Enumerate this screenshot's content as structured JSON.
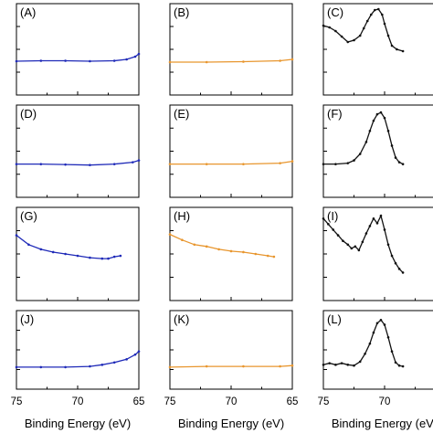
{
  "figure": {
    "bg": "#ffffff"
  },
  "colors": {
    "blue": "#1f2ab8",
    "orange": "#e8962e",
    "black": "#111111"
  },
  "chart_data": [
    {
      "type": "line",
      "label": "(A)",
      "color": "#1f2ab8",
      "xlim": [
        75,
        65
      ],
      "yrange": [
        0,
        1
      ],
      "x": [
        75,
        73,
        71,
        69,
        67,
        66,
        65.3,
        65
      ],
      "y": [
        0.37,
        0.375,
        0.375,
        0.37,
        0.375,
        0.39,
        0.42,
        0.45
      ]
    },
    {
      "type": "line",
      "label": "(B)",
      "color": "#e8962e",
      "xlim": [
        75,
        65
      ],
      "yrange": [
        0,
        1
      ],
      "x": [
        75,
        72,
        69,
        66,
        65
      ],
      "y": [
        0.36,
        0.36,
        0.365,
        0.375,
        0.39
      ]
    },
    {
      "type": "line",
      "label": "(C)",
      "color": "#111111",
      "xlim": [
        75,
        65
      ],
      "yrange": [
        0,
        1
      ],
      "partial": true,
      "x": [
        75,
        74.5,
        74,
        73.5,
        73,
        72.5,
        72,
        71.7,
        71.4,
        71.1,
        70.8,
        70.5,
        70.2,
        70,
        69.7,
        69.4,
        69,
        68.5
      ],
      "y": [
        0.76,
        0.74,
        0.7,
        0.64,
        0.58,
        0.6,
        0.65,
        0.73,
        0.81,
        0.88,
        0.93,
        0.94,
        0.88,
        0.78,
        0.65,
        0.54,
        0.5,
        0.48
      ]
    },
    {
      "type": "line",
      "label": "(D)",
      "color": "#1f2ab8",
      "xlim": [
        75,
        65
      ],
      "yrange": [
        0,
        1
      ],
      "x": [
        75,
        73,
        71,
        69,
        67,
        65.5,
        65
      ],
      "y": [
        0.36,
        0.36,
        0.355,
        0.35,
        0.36,
        0.38,
        0.4
      ]
    },
    {
      "type": "line",
      "label": "(E)",
      "color": "#e8962e",
      "xlim": [
        75,
        65
      ],
      "yrange": [
        0,
        1
      ],
      "x": [
        75,
        72,
        69,
        66,
        65
      ],
      "y": [
        0.36,
        0.36,
        0.36,
        0.37,
        0.39
      ]
    },
    {
      "type": "line",
      "label": "(F)",
      "color": "#111111",
      "xlim": [
        75,
        65
      ],
      "yrange": [
        0,
        1
      ],
      "partial": true,
      "x": [
        75,
        74,
        73,
        72.5,
        72,
        71.5,
        71.2,
        70.9,
        70.6,
        70.3,
        70,
        69.7,
        69.4,
        69.1,
        68.8,
        68.5
      ],
      "y": [
        0.36,
        0.36,
        0.37,
        0.4,
        0.47,
        0.6,
        0.72,
        0.83,
        0.9,
        0.92,
        0.86,
        0.72,
        0.56,
        0.43,
        0.38,
        0.36
      ]
    },
    {
      "type": "line",
      "label": "(G)",
      "color": "#1f2ab8",
      "xlim": [
        75,
        65
      ],
      "yrange": [
        0,
        1
      ],
      "x": [
        75,
        74,
        73,
        72,
        71,
        70,
        69,
        68,
        67.5,
        67,
        66.5
      ],
      "y": [
        0.7,
        0.6,
        0.55,
        0.52,
        0.5,
        0.48,
        0.46,
        0.45,
        0.45,
        0.47,
        0.48
      ]
    },
    {
      "type": "line",
      "label": "(H)",
      "color": "#e8962e",
      "xlim": [
        75,
        65
      ],
      "yrange": [
        0,
        1
      ],
      "x": [
        75,
        74,
        73,
        72,
        71,
        70,
        69,
        68,
        67,
        66.5
      ],
      "y": [
        0.71,
        0.65,
        0.6,
        0.58,
        0.55,
        0.53,
        0.52,
        0.5,
        0.48,
        0.47
      ]
    },
    {
      "type": "line",
      "label": "(I)",
      "color": "#111111",
      "xlim": [
        75,
        65
      ],
      "yrange": [
        0,
        1
      ],
      "partial": true,
      "x": [
        75,
        74.6,
        74.2,
        73.8,
        73.4,
        73,
        72.7,
        72.4,
        72.1,
        71.8,
        71.5,
        71.2,
        70.9,
        70.6,
        70.3,
        70,
        69.7,
        69.4,
        69.1,
        68.8,
        68.5
      ],
      "y": [
        0.88,
        0.82,
        0.76,
        0.7,
        0.64,
        0.6,
        0.56,
        0.58,
        0.54,
        0.63,
        0.72,
        0.8,
        0.88,
        0.83,
        0.91,
        0.76,
        0.6,
        0.48,
        0.4,
        0.34,
        0.3
      ]
    },
    {
      "type": "line",
      "label": "(J)",
      "color": "#1f2ab8",
      "xlim": [
        75,
        65
      ],
      "yrange": [
        0,
        1
      ],
      "x": [
        75,
        73,
        71,
        69,
        68,
        67,
        66,
        65.3,
        65
      ],
      "y": [
        0.28,
        0.28,
        0.28,
        0.29,
        0.31,
        0.34,
        0.38,
        0.44,
        0.48
      ]
    },
    {
      "type": "line",
      "label": "(K)",
      "color": "#e8962e",
      "xlim": [
        75,
        65
      ],
      "yrange": [
        0,
        1
      ],
      "x": [
        75,
        72,
        69,
        66,
        65
      ],
      "y": [
        0.28,
        0.29,
        0.29,
        0.29,
        0.3
      ]
    },
    {
      "type": "line",
      "label": "(L)",
      "color": "#111111",
      "xlim": [
        75,
        65
      ],
      "yrange": [
        0,
        1
      ],
      "partial": true,
      "x": [
        75,
        74.5,
        74,
        73.5,
        73,
        72.5,
        72,
        71.6,
        71.2,
        70.9,
        70.6,
        70.3,
        70,
        69.7,
        69.4,
        69.1,
        68.8,
        68.5
      ],
      "y": [
        0.31,
        0.33,
        0.31,
        0.33,
        0.31,
        0.3,
        0.35,
        0.45,
        0.58,
        0.72,
        0.84,
        0.88,
        0.82,
        0.66,
        0.48,
        0.34,
        0.3,
        0.29
      ]
    }
  ],
  "x_axis": {
    "tick_labels": [
      "75",
      "70",
      "65"
    ],
    "tick_values": [
      75,
      70,
      65
    ],
    "xlabel": "Binding Energy (eV)",
    "partial_tick_label": "70",
    "partial_tick_value": 70
  }
}
